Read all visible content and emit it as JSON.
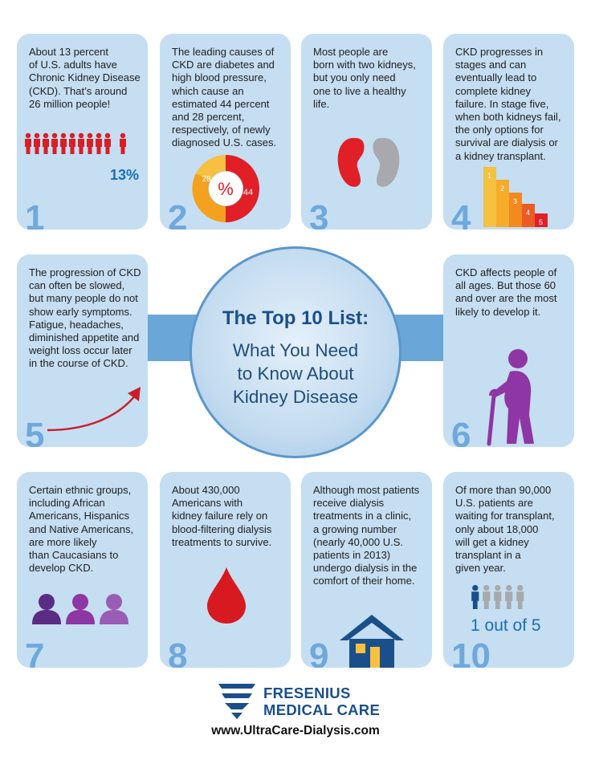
{
  "title_main": "The Top 10 List:",
  "title_sub": "What You Need\nto Know About\nKidney Disease",
  "cards": [
    {
      "number": "1",
      "text": "About 13 percent\nof U.S. adults have\nChronic Kidney Disease\n(CKD). That’s around\n26 million people!",
      "stat": "13%"
    },
    {
      "number": "2",
      "text": "The leading causes of\nCKD are diabetes and\nhigh blood pressure,\nwhich cause an\nestimated 44 percent\nand 28 percent,\nrespectively, of newly\ndiagnosed U.S. cases.",
      "donut_left": "28",
      "donut_right": "44",
      "donut_center": "%"
    },
    {
      "number": "3",
      "text": "Most people are\nborn with two kidneys,\nbut you only need\none to live a healthy\nlife."
    },
    {
      "number": "4",
      "text": "CKD progresses in\nstages and can\neventually lead to\ncomplete kidney\nfailure. In stage five,\nwhen both kidneys fail,\nthe only options for\nsurvival are dialysis or\na kidney transplant.",
      "stages": [
        "1",
        "2",
        "3",
        "4",
        "5"
      ]
    },
    {
      "number": "5",
      "text": "The progression of CKD\ncan often be slowed,\nbut many people do not\nshow early symptoms.\nFatigue, headaches,\ndiminished appetite and\nweight loss occur later\nin the course of CKD."
    },
    {
      "number": "6",
      "text": "CKD affects people of\nall ages. But those 60\nand over are the most\nlikely to develop it."
    },
    {
      "number": "7",
      "text": "Certain ethnic groups,\nincluding African\nAmericans, Hispanics\nand Native Americans,\nare more likely\nthan Caucasians to\ndevelop CKD."
    },
    {
      "number": "8",
      "text": "About 430,000\nAmericans with\nkidney failure rely on\nblood-filtering dialysis\ntreatments to survive."
    },
    {
      "number": "9",
      "text": "Although most patients\nreceive dialysis\ntreatments in a clinic,\na growing number\n(nearly 40,000 U.S.\npatients in 2013)\nundergo dialysis in the\ncomfort of their home."
    },
    {
      "number": "10",
      "text": "Of more than 90,000\nU.S. patients are\nwaiting for transplant,\nonly about 18,000\nwill get a kidney\ntransplant in a\ngiven year.",
      "stat": "1 out of 5"
    }
  ],
  "brand": {
    "line1": "FRESENIUS",
    "line2": "MEDICAL CARE",
    "url": "www.UltraCare-Dialysis.com"
  },
  "colors": {
    "card_bg": "#c5def2",
    "number": "#6fa8dc",
    "accent_blue": "#1a4f8a",
    "red": "#e01f26",
    "purple": "#7b3f98"
  },
  "icons": {
    "card1": "people-icon",
    "card2": "donut-chart-icon",
    "card3": "kidneys-icon",
    "card4": "stage-bars-icon",
    "card5": "rising-arrow-icon",
    "card6": "elderly-person-icon",
    "card7": "group-people-icon",
    "card8": "blood-drop-icon",
    "card9": "house-icon",
    "card10": "waiting-people-icon"
  }
}
